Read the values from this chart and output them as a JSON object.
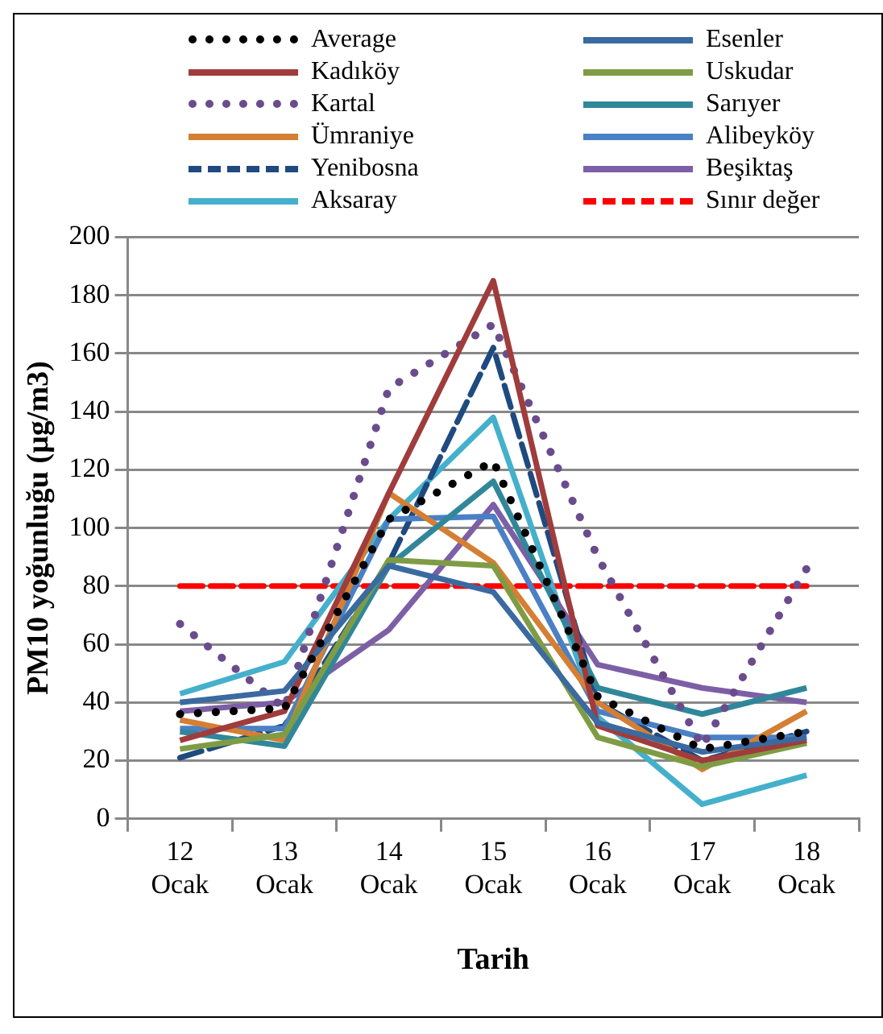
{
  "chart_data": {
    "type": "line",
    "ylabel": "PM10 yoğunluğu (µg/m3)",
    "xlabel": "Tarih",
    "categories": [
      "12 Ocak",
      "13 Ocak",
      "14 Ocak",
      "15 Ocak",
      "16 Ocak",
      "17 Ocak",
      "18 Ocak"
    ],
    "ylim": [
      0,
      200
    ],
    "yticks": [
      0,
      20,
      40,
      60,
      80,
      100,
      120,
      140,
      160,
      180,
      200
    ],
    "grid": "y",
    "legend": "top",
    "series": [
      {
        "name": "Average",
        "color": "#000000",
        "line_style": "dotted",
        "values": [
          36,
          38,
          103,
          123,
          42,
          24,
          30
        ]
      },
      {
        "name": "Esenler",
        "color": "#3a6aa0",
        "line_style": "solid",
        "values": [
          40,
          44,
          87,
          78,
          33,
          23,
          28
        ]
      },
      {
        "name": "Kadıköy",
        "color": "#a03c3c",
        "line_style": "solid",
        "values": [
          27,
          37,
          112,
          185,
          32,
          20,
          27
        ]
      },
      {
        "name": "Uskudar",
        "color": "#7f9c45",
        "line_style": "solid",
        "values": [
          24,
          29,
          89,
          87,
          28,
          18,
          26
        ]
      },
      {
        "name": "Kartal",
        "color": "#6a4c8c",
        "line_style": "dotted",
        "values": [
          67,
          38,
          148,
          170,
          90,
          25,
          86
        ]
      },
      {
        "name": "Sarıyer",
        "color": "#31879a",
        "line_style": "solid",
        "values": [
          30,
          25,
          87,
          116,
          45,
          36,
          45
        ]
      },
      {
        "name": "Ümraniye",
        "color": "#d47f33",
        "line_style": "solid",
        "values": [
          34,
          27,
          112,
          88,
          40,
          17,
          37
        ]
      },
      {
        "name": "Alibeyköy",
        "color": "#4a80c4",
        "line_style": "solid",
        "values": [
          31,
          31,
          103,
          104,
          37,
          28,
          28
        ]
      },
      {
        "name": "Yenibosna",
        "color": "#1f4a80",
        "line_style": "dashed",
        "values": [
          21,
          32,
          88,
          162,
          40,
          20,
          30
        ]
      },
      {
        "name": "Beşiktaş",
        "color": "#7d5fa6",
        "line_style": "solid",
        "values": [
          37,
          40,
          65,
          108,
          53,
          45,
          40
        ]
      },
      {
        "name": "Aksaray",
        "color": "#44b0cc",
        "line_style": "solid",
        "values": [
          43,
          54,
          103,
          138,
          35,
          5,
          15
        ]
      },
      {
        "name": "Sınır değer",
        "color": "#ff0000",
        "line_style": "dashed",
        "values": [
          80,
          80,
          80,
          80,
          80,
          80,
          80
        ]
      }
    ]
  }
}
